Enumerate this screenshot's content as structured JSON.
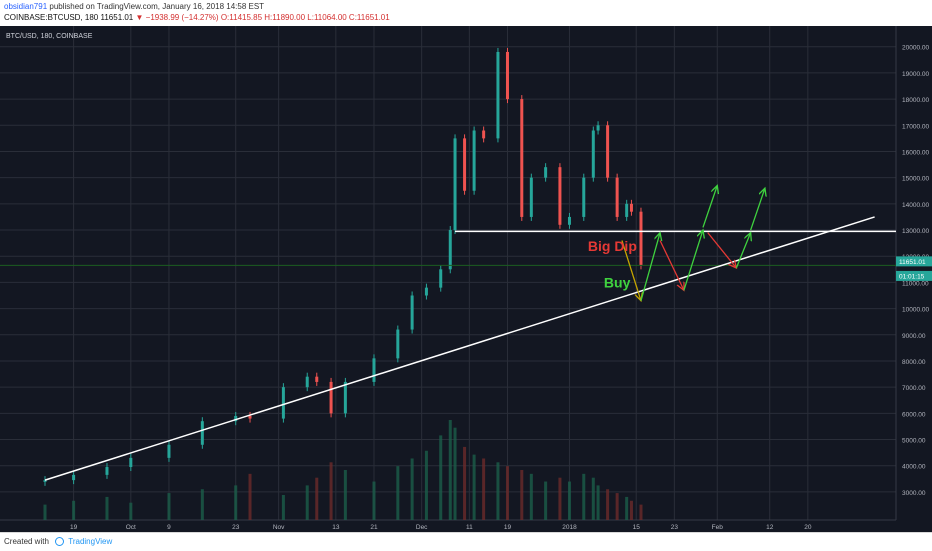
{
  "header": {
    "author": "obsidian791",
    "published_text": "published on TradingView.com, January 16, 2018 14:58 EST",
    "symbol_line": "COINBASE:BTCUSD, 180",
    "last_price": "11651.01",
    "change_text": "▼ −1938.99 (−14.27%)",
    "ohlc": "O:11415.85  H:11890.00  L:11064.00  C:11651.01"
  },
  "footer": {
    "created_with": "Created with",
    "brand": "TradingView"
  },
  "chart_data": {
    "type": "candlestick",
    "symbol_label": "BTC/USD, 180, COINBASE",
    "x_tick_labels": [
      "19",
      "Oct",
      "9",
      "23",
      "Nov",
      "13",
      "21",
      "Dec",
      "11",
      "19",
      "2018",
      "15",
      "23",
      "Feb",
      "12",
      "20"
    ],
    "y_tick_labels": [
      "3000.00",
      "4000.00",
      "5000.00",
      "6000.00",
      "7000.00",
      "8000.00",
      "9000.00",
      "10000.00",
      "11000.00",
      "12000.00",
      "13000.00",
      "14000.00",
      "15000.00",
      "16000.00",
      "17000.00",
      "18000.00",
      "19000.00",
      "20000.00"
    ],
    "ylim": [
      2500,
      20600
    ],
    "price_series": [
      {
        "date": "2017-09-13",
        "close": 3450
      },
      {
        "date": "2017-09-19",
        "close": 3650
      },
      {
        "date": "2017-09-26",
        "close": 3950
      },
      {
        "date": "2017-10-01",
        "close": 4300
      },
      {
        "date": "2017-10-09",
        "close": 4800
      },
      {
        "date": "2017-10-16",
        "close": 5700
      },
      {
        "date": "2017-10-23",
        "close": 5900
      },
      {
        "date": "2017-10-26",
        "close": 5800
      },
      {
        "date": "2017-11-02",
        "close": 7000
      },
      {
        "date": "2017-11-07",
        "close": 7400
      },
      {
        "date": "2017-11-09",
        "close": 7200
      },
      {
        "date": "2017-11-12",
        "close": 6000
      },
      {
        "date": "2017-11-15",
        "close": 7200
      },
      {
        "date": "2017-11-21",
        "close": 8100
      },
      {
        "date": "2017-11-26",
        "close": 9200
      },
      {
        "date": "2017-11-29",
        "close": 10500
      },
      {
        "date": "2017-12-02",
        "close": 10800
      },
      {
        "date": "2017-12-05",
        "close": 11500
      },
      {
        "date": "2017-12-07",
        "close": 13000
      },
      {
        "date": "2017-12-08",
        "close": 16500
      },
      {
        "date": "2017-12-10",
        "close": 14500
      },
      {
        "date": "2017-12-12",
        "close": 16800
      },
      {
        "date": "2017-12-14",
        "close": 16500
      },
      {
        "date": "2017-12-17",
        "close": 19800
      },
      {
        "date": "2017-12-19",
        "close": 18000
      },
      {
        "date": "2017-12-22",
        "close": 13500
      },
      {
        "date": "2017-12-24",
        "close": 15000
      },
      {
        "date": "2017-12-27",
        "close": 15400
      },
      {
        "date": "2017-12-30",
        "close": 13200
      },
      {
        "date": "2018-01-01",
        "close": 13500
      },
      {
        "date": "2018-01-04",
        "close": 15000
      },
      {
        "date": "2018-01-06",
        "close": 16800
      },
      {
        "date": "2018-01-07",
        "close": 17000
      },
      {
        "date": "2018-01-09",
        "close": 15000
      },
      {
        "date": "2018-01-11",
        "close": 13500
      },
      {
        "date": "2018-01-13",
        "close": 14000
      },
      {
        "date": "2018-01-14",
        "close": 13700
      },
      {
        "date": "2018-01-16",
        "close": 11651
      }
    ],
    "volume_series": [
      400,
      500,
      600,
      450,
      700,
      800,
      900,
      1200,
      650,
      900,
      1100,
      1500,
      1300,
      1000,
      1400,
      1600,
      1800,
      2200,
      2600,
      2400,
      1900,
      1700,
      1600,
      1500,
      1400,
      1300,
      1200,
      1000,
      1100,
      1000,
      1200,
      1100,
      900,
      800,
      700,
      600,
      500,
      400
    ],
    "price_labels": [
      {
        "text": "11651.01",
        "value": 11651.01,
        "color": "#26a69a"
      },
      {
        "text": "01:01:15",
        "value": 11400,
        "color": "#26a69a"
      }
    ],
    "horizontal_lines": [
      {
        "value": 12950,
        "color": "#ffffff"
      },
      {
        "value": 11651,
        "color": "#1b5e20"
      }
    ],
    "trendline": {
      "points": [
        {
          "date": "2017-09-13",
          "value": 3450
        },
        {
          "date": "2018-03-06",
          "value": 13500
        }
      ],
      "color": "#ffffff"
    },
    "annotations": [
      {
        "text": "Big Dip",
        "date": "2018-01-10",
        "value": 12200,
        "color": "#e53935"
      },
      {
        "text": "Buy",
        "date": "2018-01-11",
        "value": 10800,
        "color": "#3fd23f"
      }
    ],
    "arrows": [
      {
        "from": [
          "2018-01-12",
          12600
        ],
        "to": [
          "2018-01-16",
          10300
        ],
        "color": "#c6a600"
      },
      {
        "from": [
          "2018-01-16",
          10300
        ],
        "to": [
          "2018-01-20",
          12900
        ],
        "color": "#3fd23f"
      },
      {
        "from": [
          "2018-01-20",
          12600
        ],
        "to": [
          "2018-01-25",
          10700
        ],
        "color": "#e53935"
      },
      {
        "from": [
          "2018-01-25",
          10700
        ],
        "to": [
          "2018-01-29",
          13000
        ],
        "color": "#3fd23f"
      },
      {
        "from": [
          "2018-01-29",
          13100
        ],
        "to": [
          "2018-02-01",
          14700
        ],
        "color": "#3fd23f"
      },
      {
        "from": [
          "2018-01-30",
          12900
        ],
        "to": [
          "2018-02-05",
          11550
        ],
        "color": "#e53935"
      },
      {
        "from": [
          "2018-02-05",
          11550
        ],
        "to": [
          "2018-02-08",
          12900
        ],
        "color": "#3fd23f"
      },
      {
        "from": [
          "2018-02-08",
          13000
        ],
        "to": [
          "2018-02-11",
          14600
        ],
        "color": "#3fd23f"
      }
    ],
    "grid": true,
    "colors": {
      "background": "#131722",
      "grid": "#2a2e39",
      "up": "#26a69a",
      "down": "#ef5350",
      "axis_text": "#b2b5be"
    }
  }
}
